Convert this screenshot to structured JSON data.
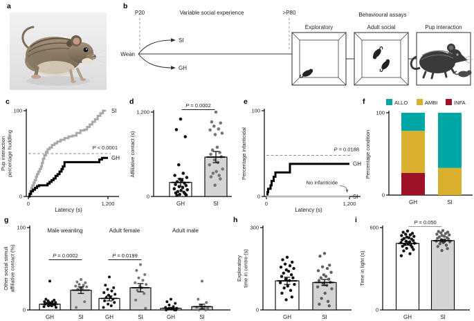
{
  "letters": {
    "a": "a",
    "b": "b",
    "c": "c",
    "d": "d",
    "e": "e",
    "f": "f",
    "g": "g",
    "h": "h",
    "i": "i"
  },
  "colors": {
    "gh_black": "#000000",
    "si_line_gray": "#a8a8a8",
    "si_bar_fill": "#d4d4d4",
    "allo_teal": "#00a7a5",
    "ambi_gold": "#d9af2e",
    "infa_red": "#9c1327"
  },
  "panel_b": {
    "p20": "P20",
    "phase_label": "Variable social experience",
    "p80": ">P80",
    "wean": "Wean",
    "si": "SI",
    "gh": "GH",
    "assays_title": "Behavioural assays",
    "assay1": "Exploratory",
    "assay2": "Adult social",
    "assay3": "Pup interaction"
  },
  "chart_data": [
    {
      "panel": "c",
      "type": "line",
      "subtype": "step-cumulative",
      "xlabel": "Latency (s)",
      "ylabel_lines": [
        "Pup interaction",
        "percentage huddling"
      ],
      "xlim": [
        0,
        1200
      ],
      "ylim": [
        0,
        100
      ],
      "xticks": [
        {
          "v": 0,
          "label": "0"
        },
        {
          "v": 1200,
          "label": "1,200"
        }
      ],
      "yticks": [
        {
          "v": 0,
          "label": "0"
        },
        {
          "v": 100,
          "label": "100"
        }
      ],
      "ref_line": {
        "y": 50,
        "label": "P < 0.0001"
      },
      "series": [
        {
          "name": "SI",
          "color": "#a8a8a8",
          "points": [
            [
              0,
              0
            ],
            [
              15,
              3
            ],
            [
              30,
              6
            ],
            [
              45,
              10
            ],
            [
              60,
              13
            ],
            [
              80,
              16
            ],
            [
              95,
              19
            ],
            [
              115,
              23
            ],
            [
              130,
              26
            ],
            [
              150,
              29
            ],
            [
              170,
              32
            ],
            [
              190,
              35
            ],
            [
              205,
              39
            ],
            [
              220,
              44
            ],
            [
              240,
              48
            ],
            [
              265,
              52
            ],
            [
              290,
              55
            ],
            [
              320,
              57
            ],
            [
              355,
              60
            ],
            [
              395,
              62
            ],
            [
              435,
              64
            ],
            [
              485,
              66
            ],
            [
              545,
              68
            ],
            [
              605,
              70
            ],
            [
              665,
              71
            ],
            [
              725,
              74
            ],
            [
              785,
              77
            ],
            [
              845,
              78
            ],
            [
              885,
              81
            ],
            [
              925,
              84
            ],
            [
              965,
              87
            ],
            [
              1005,
              90
            ],
            [
              1045,
              94
            ],
            [
              1085,
              97
            ],
            [
              1125,
              100
            ],
            [
              1170,
              100
            ]
          ]
        },
        {
          "name": "GH",
          "color": "#000000",
          "points": [
            [
              0,
              0
            ],
            [
              20,
              3
            ],
            [
              40,
              6
            ],
            [
              70,
              8
            ],
            [
              100,
              10
            ],
            [
              130,
              12
            ],
            [
              160,
              13
            ],
            [
              260,
              13
            ],
            [
              290,
              15
            ],
            [
              320,
              17
            ],
            [
              350,
              19
            ],
            [
              380,
              21
            ],
            [
              410,
              24
            ],
            [
              440,
              26
            ],
            [
              470,
              29
            ],
            [
              500,
              32
            ],
            [
              520,
              35
            ],
            [
              545,
              40
            ],
            [
              1030,
              40
            ],
            [
              1070,
              43
            ],
            [
              1110,
              45
            ],
            [
              1200,
              45
            ]
          ]
        }
      ]
    },
    {
      "panel": "d",
      "type": "bar-scatter",
      "ylabel_lines": [
        "Affiliative contact (s)"
      ],
      "ylim": [
        0,
        1200
      ],
      "yticks": [
        {
          "v": 0,
          "label": "0"
        },
        {
          "v": 1200,
          "label": "1,200"
        }
      ],
      "bars": [
        {
          "category": "GH",
          "mean": 200,
          "err": 55,
          "fill": "#ffffff",
          "dot_color": "#141414",
          "dots": [
            1100,
            950,
            850,
            450,
            330,
            300,
            270,
            245,
            230,
            210,
            190,
            170,
            155,
            140,
            125,
            110,
            95,
            85,
            70,
            60,
            50,
            40,
            30,
            22,
            15
          ]
        },
        {
          "category": "SI",
          "mean": 560,
          "err": 80,
          "fill": "#d4d4d4",
          "dot_color": "#767676",
          "dots": [
            1200,
            1060,
            1045,
            1000,
            960,
            945,
            900,
            880,
            700,
            660,
            625,
            600,
            565,
            520,
            485,
            450,
            390,
            355,
            330,
            300,
            280,
            250,
            160
          ]
        }
      ],
      "significance": [
        {
          "between": [
            0,
            1
          ],
          "label": "P = 0.0002",
          "line_color": "#1a1a1a"
        }
      ]
    },
    {
      "panel": "e",
      "type": "line",
      "subtype": "step-cumulative",
      "xlabel": "Latency (s)",
      "ylabel_lines": [
        "Percentage infanticidal"
      ],
      "xlim": [
        0,
        1200
      ],
      "ylim": [
        0,
        100
      ],
      "xticks": [
        {
          "v": 0,
          "label": "0"
        },
        {
          "v": 1200,
          "label": "1,200"
        }
      ],
      "yticks": [
        {
          "v": 0,
          "label": "0"
        },
        {
          "v": 100,
          "label": "100"
        }
      ],
      "ref_line": {
        "y": 48,
        "label": "P = 0.0188"
      },
      "annotation": {
        "text": "No infanticide",
        "text_at": [
          1030,
          14
        ],
        "arrow_to": [
          1165,
          3
        ]
      },
      "series": [
        {
          "name": "GH",
          "color": "#000000",
          "points": [
            [
              0,
              0
            ],
            [
              15,
              5
            ],
            [
              25,
              9
            ],
            [
              60,
              13
            ],
            [
              75,
              18
            ],
            [
              105,
              23
            ],
            [
              130,
              28
            ],
            [
              320,
              28
            ],
            [
              340,
              38
            ],
            [
              1200,
              38
            ]
          ]
        },
        {
          "name": "SI",
          "color": "#bbbbbb",
          "points": [
            [
              0,
              0
            ],
            [
              1200,
              0
            ]
          ]
        }
      ]
    },
    {
      "panel": "f",
      "type": "stacked-bar",
      "ylabel_lines": [
        "Percentage condition"
      ],
      "ylim": [
        0,
        100
      ],
      "yticks": [
        {
          "v": 0,
          "label": "0"
        },
        {
          "v": 100,
          "label": "100"
        }
      ],
      "legend": [
        {
          "label": "ALLO",
          "color": "#00a7a5"
        },
        {
          "label": "AMBI",
          "color": "#d9af2e"
        },
        {
          "label": "INFA",
          "color": "#9c1327"
        }
      ],
      "bars": [
        {
          "category": "GH",
          "segments": [
            {
              "label": "INFA",
              "value": 27
            },
            {
              "label": "AMBI",
              "value": 51
            },
            {
              "label": "ALLO",
              "value": 22
            }
          ]
        },
        {
          "category": "SI",
          "segments": [
            {
              "label": "AMBI",
              "value": 33
            },
            {
              "label": "ALLO",
              "value": 67
            }
          ]
        }
      ]
    },
    {
      "panel": "g",
      "type": "bar-scatter",
      "ylabel_lines": [
        "Other social stimuli",
        "affiliative contact (%)"
      ],
      "ylim": [
        0,
        100
      ],
      "yticks": [
        {
          "v": 0,
          "label": "0"
        },
        {
          "v": 100,
          "label": "100"
        }
      ],
      "group_labels": [
        "Male weanling",
        "Adult female",
        "Adult male"
      ],
      "bars": [
        {
          "category": "GH",
          "mean": 7,
          "err": 2,
          "fill": "#ffffff",
          "dot_color": "#141414",
          "dots": [
            35,
            13,
            12,
            11,
            10,
            10,
            9,
            9,
            8,
            8,
            7,
            7,
            6,
            5,
            5,
            4,
            3
          ]
        },
        {
          "category": "SI",
          "mean": 24,
          "err": 4,
          "fill": "#d4d4d4",
          "dot_color": "#767676",
          "dots": [
            37,
            34,
            33,
            31,
            30,
            29,
            28,
            27,
            26,
            25,
            10,
            3
          ]
        },
        {
          "category": "GH",
          "mean": 14,
          "err": 3,
          "fill": "#ffffff",
          "dot_color": "#141414",
          "dots": [
            40,
            30,
            27,
            25,
            23,
            21,
            19,
            18,
            16,
            15,
            13,
            11,
            9,
            7,
            5,
            3
          ]
        },
        {
          "category": "SI",
          "mean": 27,
          "err": 5,
          "fill": "#d4d4d4",
          "dot_color": "#767676",
          "dots": [
            55,
            48,
            43,
            39,
            36,
            33,
            31,
            29,
            27,
            24,
            20,
            12,
            2
          ]
        },
        {
          "category": "GH",
          "mean": 2,
          "err": 1,
          "fill": "#ffffff",
          "dot_color": "#141414",
          "dots": [
            13,
            10,
            8,
            6,
            4,
            3,
            2,
            2,
            1,
            1,
            0,
            0,
            0
          ]
        },
        {
          "category": "SI",
          "mean": 4,
          "err": 3,
          "fill": "#d4d4d4",
          "dot_color": "#767676",
          "dots": [
            35,
            13,
            9,
            6,
            4,
            3,
            2,
            1,
            1,
            0,
            0
          ]
        }
      ],
      "significance": [
        {
          "between": [
            0,
            1
          ],
          "label": "P = 0.0002",
          "line_color": "#1a1a1a"
        },
        {
          "between": [
            2,
            3
          ],
          "label": "P = 0.0199",
          "line_color": "#1a1a1a"
        }
      ]
    },
    {
      "panel": "h",
      "type": "bar-scatter",
      "ylabel_lines": [
        "Exploratory",
        "time in centre (s)"
      ],
      "ylim": [
        0,
        300
      ],
      "yticks": [
        {
          "v": 0,
          "label": "0"
        },
        {
          "v": 300,
          "label": "300"
        }
      ],
      "bars": [
        {
          "category": "GH",
          "mean": 106,
          "err": 13,
          "fill": "#ffffff",
          "dot_color": "#141414",
          "dots": [
            192,
            183,
            174,
            167,
            161,
            156,
            151,
            146,
            141,
            134,
            128,
            122,
            117,
            112,
            107,
            99,
            93,
            87,
            80,
            71,
            61,
            47,
            37
          ]
        },
        {
          "category": "SI",
          "mean": 100,
          "err": 11,
          "fill": "#d4d4d4",
          "dot_color": "#5f5f5f",
          "dots": [
            206,
            196,
            163,
            157,
            151,
            143,
            137,
            128,
            122,
            117,
            112,
            107,
            101,
            96,
            90,
            84,
            77,
            61,
            42,
            31,
            21,
            15
          ]
        }
      ]
    },
    {
      "panel": "i",
      "type": "bar-scatter",
      "ylabel_lines": [
        "Time in light (s)"
      ],
      "ylim": [
        0,
        600
      ],
      "yticks": [
        {
          "v": 0,
          "label": "0"
        },
        {
          "v": 600,
          "label": "600"
        }
      ],
      "bars": [
        {
          "category": "GH",
          "mean": 485,
          "err": 13,
          "fill": "#ffffff",
          "dot_color": "#141414",
          "dots": [
            575,
            566,
            558,
            552,
            547,
            542,
            536,
            531,
            526,
            521,
            516,
            511,
            506,
            501,
            496,
            491,
            486,
            481,
            476,
            470,
            464,
            457,
            449,
            440,
            430,
            410,
            395
          ]
        },
        {
          "category": "SI",
          "mean": 505,
          "err": 10,
          "fill": "#d4d4d4",
          "dot_color": "#5f5f5f",
          "dots": [
            578,
            572,
            567,
            562,
            557,
            552,
            547,
            542,
            537,
            532,
            527,
            522,
            517,
            512,
            507,
            502,
            497,
            490,
            482,
            472,
            462,
            447,
            433
          ]
        }
      ],
      "significance": [
        {
          "between": [
            0,
            1
          ],
          "label": "P = 0.050",
          "line_color": "#9a9a9a"
        }
      ]
    }
  ]
}
